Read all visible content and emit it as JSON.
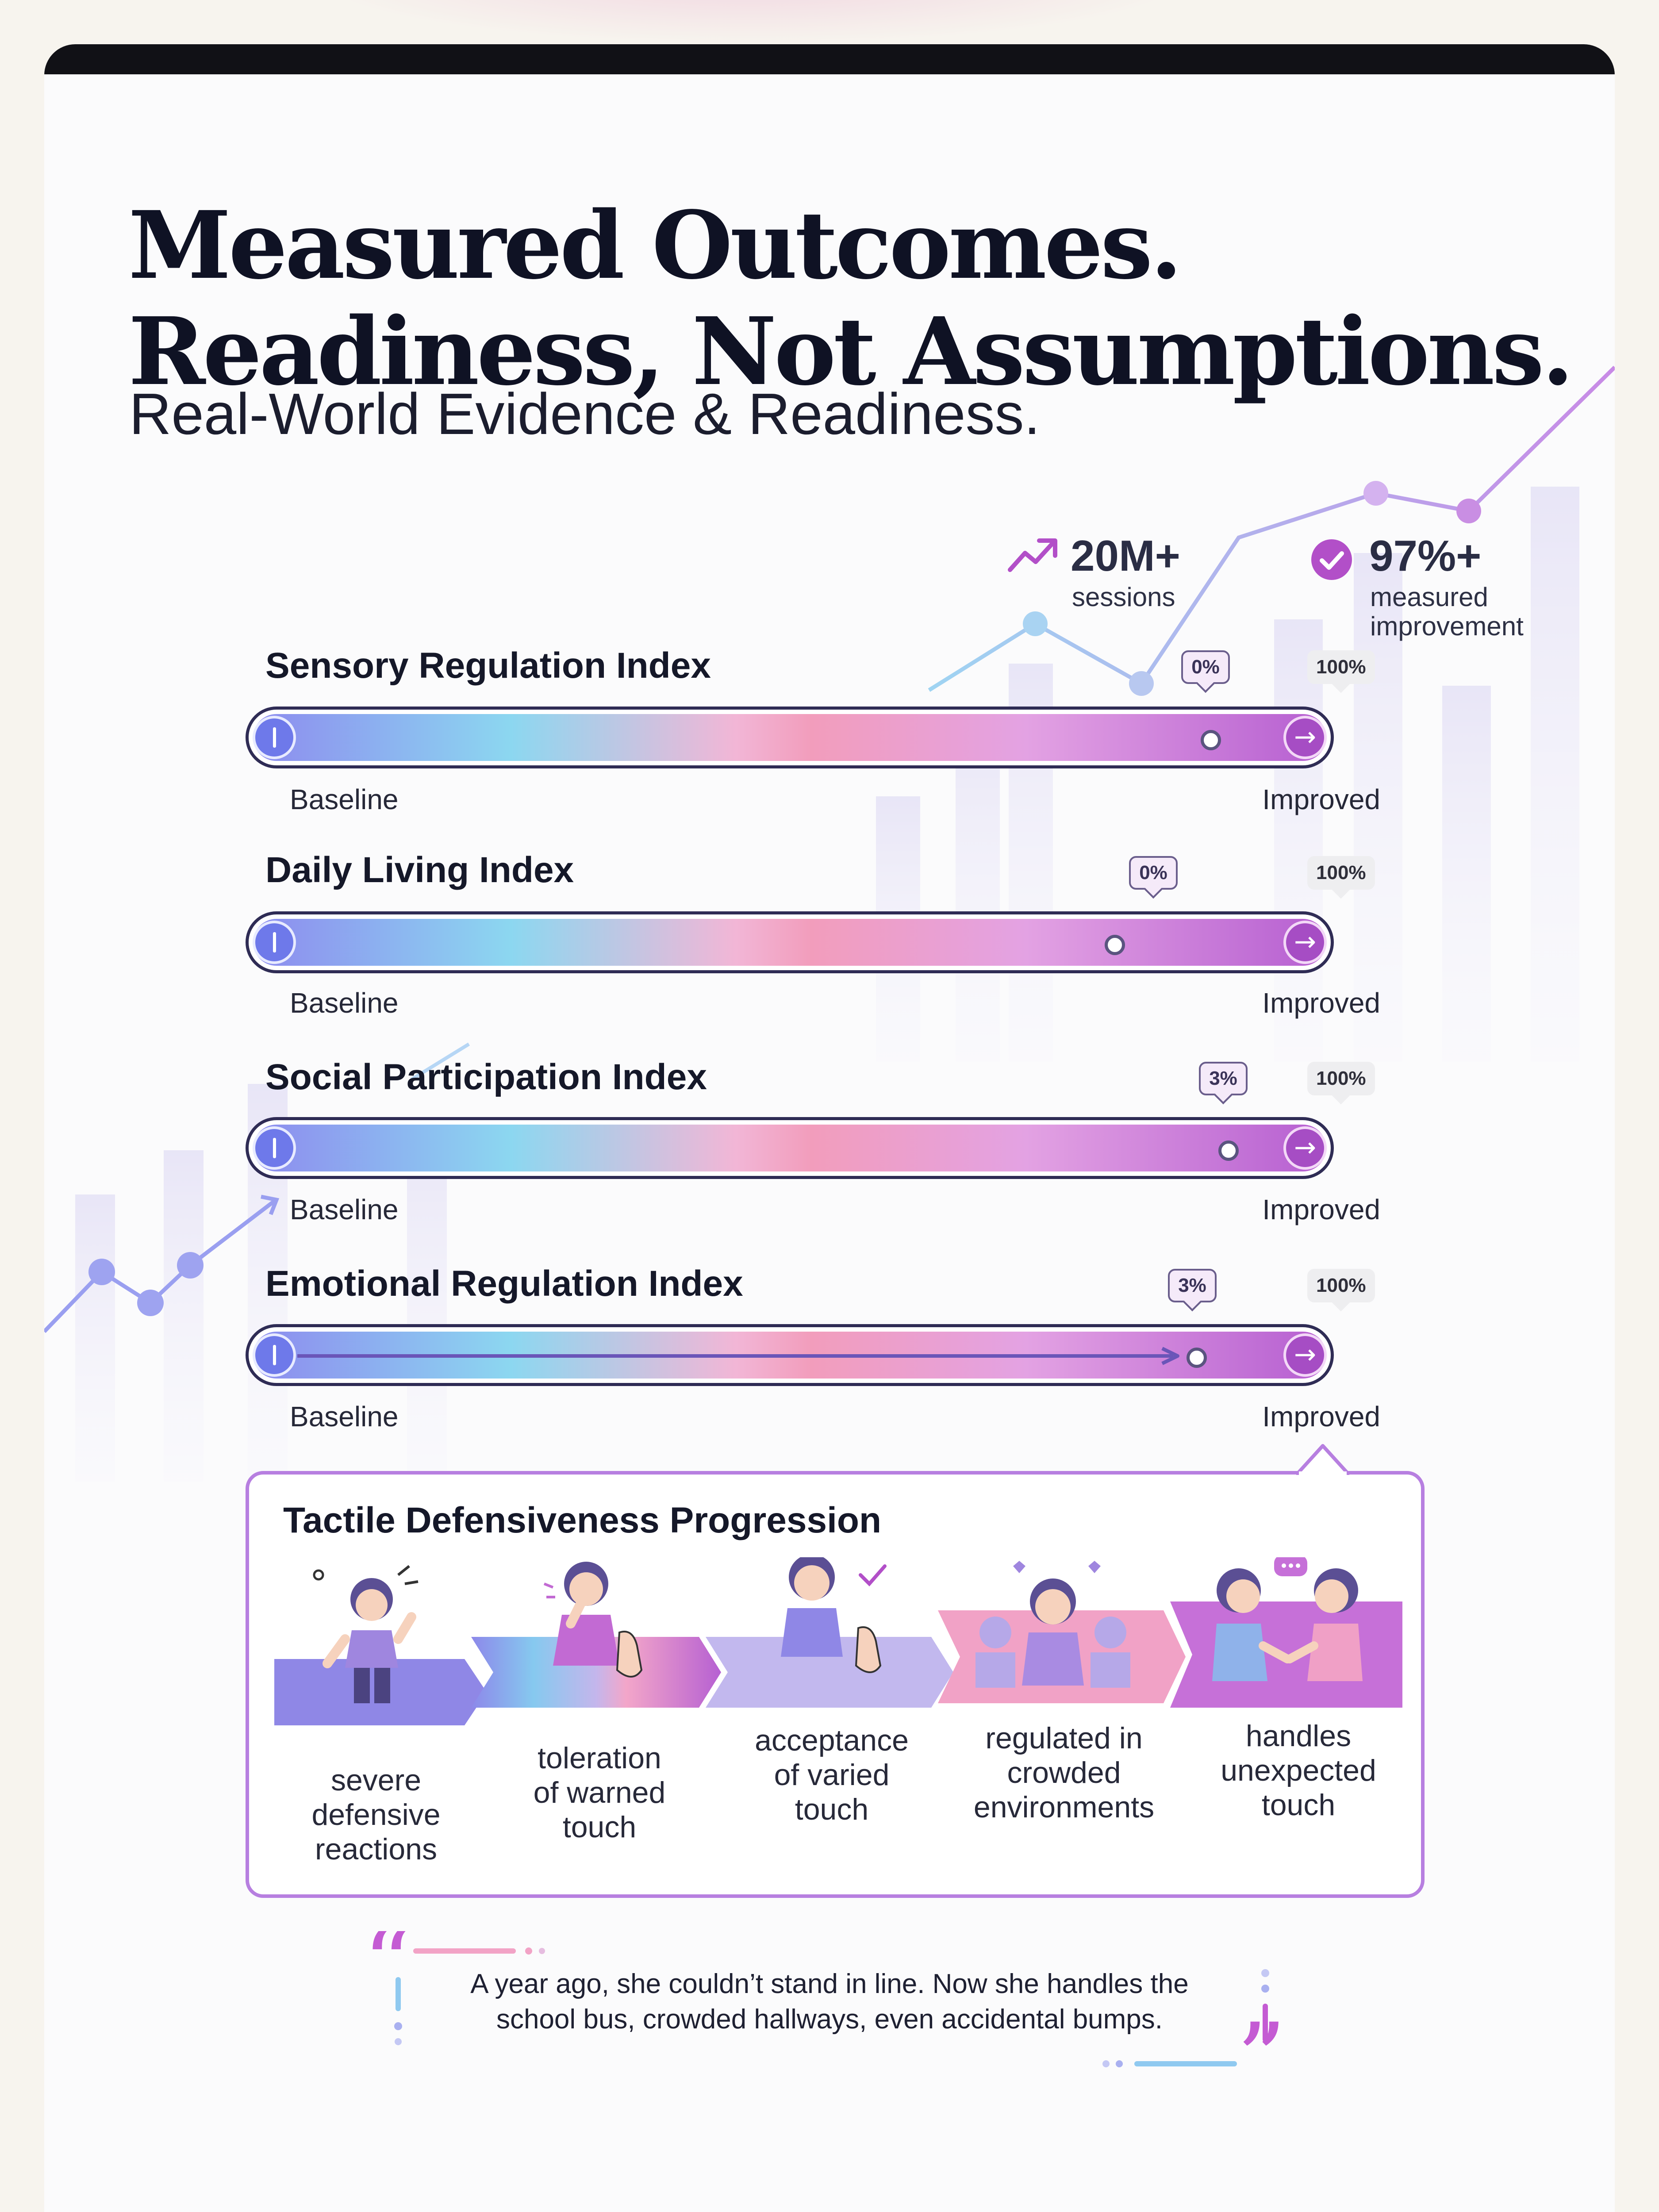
{
  "header": {
    "title_line1": "Measured Outcomes.",
    "title_line2": "Readiness, Not Assumptions.",
    "subtitle": "Real-World Evidence & Readiness."
  },
  "stats": [
    {
      "icon": "trend-up-icon",
      "value": "20M+",
      "label": "sessions"
    },
    {
      "icon": "check-circle-icon",
      "value": "97%+",
      "label_line1": "measured",
      "label_line2": "improvement"
    }
  ],
  "indices": [
    {
      "title": "Sensory Regulation Index",
      "start_label": "Baseline",
      "end_label": "Improved",
      "current_label": "0%",
      "max_label": "100%"
    },
    {
      "title": "Daily Living Index",
      "start_label": "Baseline",
      "end_label": "Improved",
      "current_label": "0%",
      "max_label": "100%"
    },
    {
      "title": "Social Participation Index",
      "start_label": "Baseline",
      "end_label": "Improved",
      "current_label": "3%",
      "max_label": "100%"
    },
    {
      "title": "Emotional Regulation Index",
      "start_label": "Baseline",
      "end_label": "Improved",
      "current_label": "3%",
      "max_label": "100%"
    }
  ],
  "progression": {
    "title": "Tactile Defensiveness Progression",
    "stages": [
      {
        "line1": "severe",
        "line2": "defensive",
        "line3": "reactions"
      },
      {
        "line1": "toleration",
        "line2": "of warned",
        "line3": "touch"
      },
      {
        "line1": "acceptance",
        "line2": "of varied",
        "line3": "touch"
      },
      {
        "line1": "regulated in",
        "line2": "crowded",
        "line3": "environments"
      },
      {
        "line1": "handles",
        "line2": "unexpected",
        "line3": "touch"
      }
    ]
  },
  "quote": {
    "line1": "A year ago, she couldn’t stand in line. Now she handles the",
    "line2": "school bus, crowded hallways, even accidental bumps."
  },
  "colors": {
    "accent_purple": "#a64dc4",
    "accent_blue": "#6e79ea",
    "track_border": "#2f2c55"
  }
}
